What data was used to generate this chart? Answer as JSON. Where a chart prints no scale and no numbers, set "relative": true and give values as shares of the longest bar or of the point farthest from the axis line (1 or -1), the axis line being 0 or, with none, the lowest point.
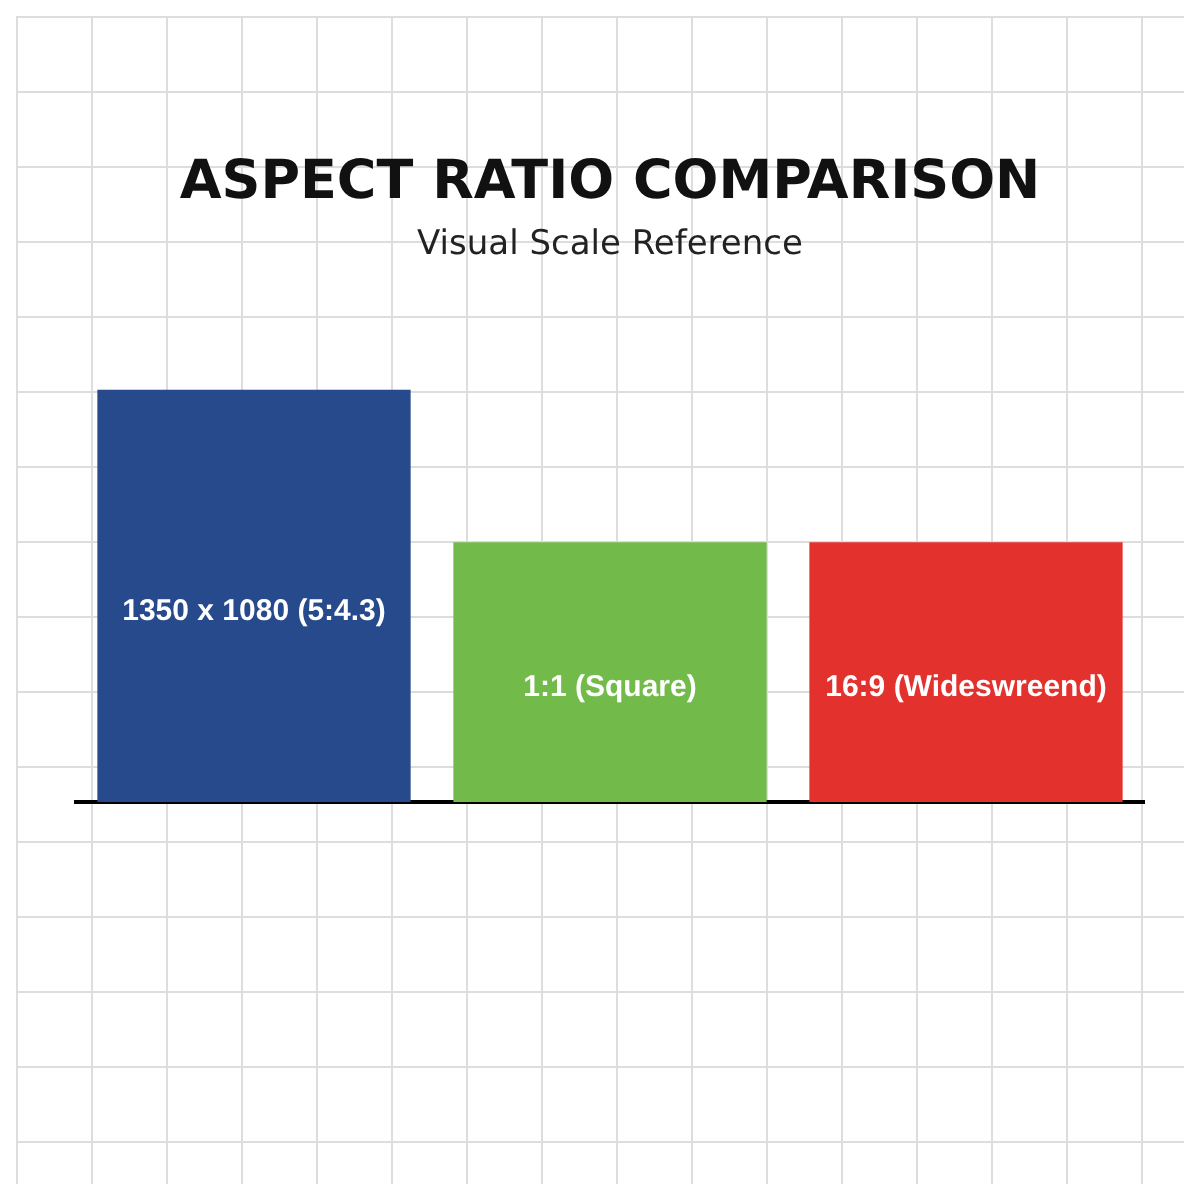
{
  "chart_data": {
    "type": "bar",
    "title": "ASPECT RATIO COMPARISON",
    "subtitle": "Visual Scale Reference",
    "categories": [
      "1350 x 1080 (5:4.3)",
      "1:1 (Square)",
      "16:9 (Wideswreend)"
    ],
    "values": [
      1,
      0.63,
      0.63
    ],
    "colors": [
      "#264a8c",
      "#72bb4a",
      "#e3312e"
    ],
    "relative": true
  }
}
